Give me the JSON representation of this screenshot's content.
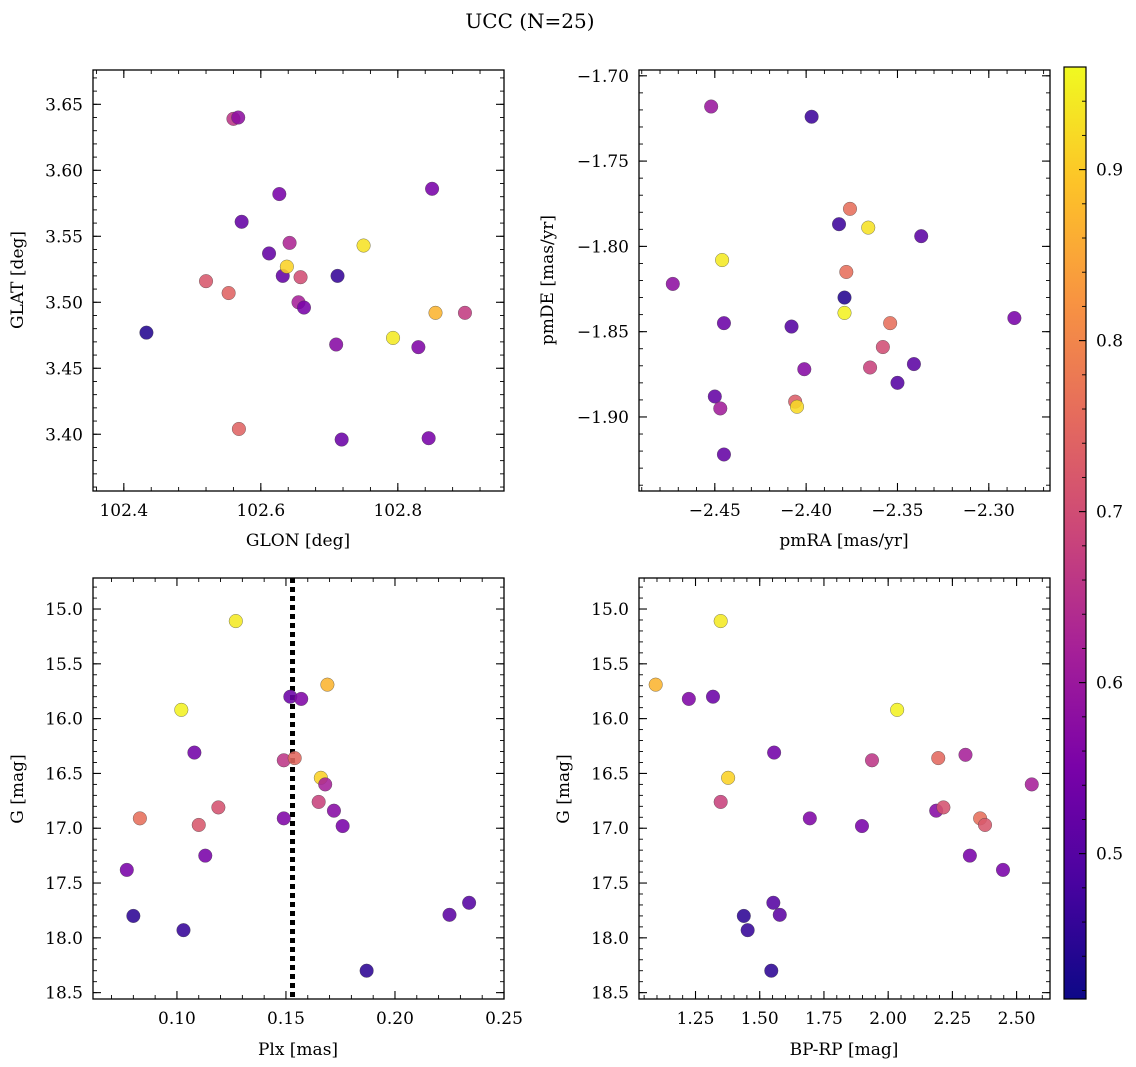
{
  "figure": {
    "title": "UCC (N=25)",
    "colorbar": {
      "range": [
        0.415,
        0.96
      ],
      "ticks": [
        0.5,
        0.6,
        0.7,
        0.8,
        0.9
      ],
      "tick_labels": [
        "0.5",
        "0.6",
        "0.7",
        "0.8",
        "0.9"
      ],
      "colormap": "plasma"
    }
  },
  "chart_data": [
    {
      "type": "scatter",
      "xlabel": "GLON [deg]",
      "ylabel": "GLAT [deg]",
      "xlim": [
        102.355,
        102.955
      ],
      "ylim": [
        3.357,
        3.676
      ],
      "xticks": [
        102.4,
        102.6,
        102.8
      ],
      "xtick_labels": [
        "102.4",
        "102.6",
        "102.8"
      ],
      "yticks": [
        3.4,
        3.45,
        3.5,
        3.55,
        3.6,
        3.65
      ],
      "ytick_labels": [
        "3.40",
        "3.45",
        "3.50",
        "3.55",
        "3.60",
        "3.65"
      ],
      "invert_y": false,
      "points": [
        {
          "x": 102.433,
          "y": 3.477,
          "c": 0.44
        },
        {
          "x": 102.52,
          "y": 3.516,
          "c": 0.72
        },
        {
          "x": 102.553,
          "y": 3.507,
          "c": 0.74
        },
        {
          "x": 102.56,
          "y": 3.639,
          "c": 0.66
        },
        {
          "x": 102.567,
          "y": 3.64,
          "c": 0.58
        },
        {
          "x": 102.568,
          "y": 3.404,
          "c": 0.74
        },
        {
          "x": 102.572,
          "y": 3.561,
          "c": 0.52
        },
        {
          "x": 102.612,
          "y": 3.537,
          "c": 0.52
        },
        {
          "x": 102.627,
          "y": 3.582,
          "c": 0.55
        },
        {
          "x": 102.632,
          "y": 3.52,
          "c": 0.52
        },
        {
          "x": 102.638,
          "y": 3.527,
          "c": 0.91
        },
        {
          "x": 102.642,
          "y": 3.545,
          "c": 0.63
        },
        {
          "x": 102.655,
          "y": 3.5,
          "c": 0.62
        },
        {
          "x": 102.658,
          "y": 3.519,
          "c": 0.7
        },
        {
          "x": 102.663,
          "y": 3.496,
          "c": 0.55
        },
        {
          "x": 102.712,
          "y": 3.52,
          "c": 0.46
        },
        {
          "x": 102.71,
          "y": 3.468,
          "c": 0.57
        },
        {
          "x": 102.718,
          "y": 3.396,
          "c": 0.53
        },
        {
          "x": 102.75,
          "y": 3.543,
          "c": 0.93
        },
        {
          "x": 102.793,
          "y": 3.473,
          "c": 0.94
        },
        {
          "x": 102.83,
          "y": 3.466,
          "c": 0.56
        },
        {
          "x": 102.845,
          "y": 3.397,
          "c": 0.55
        },
        {
          "x": 102.85,
          "y": 3.586,
          "c": 0.55
        },
        {
          "x": 102.855,
          "y": 3.492,
          "c": 0.87
        },
        {
          "x": 102.898,
          "y": 3.492,
          "c": 0.67
        }
      ]
    },
    {
      "type": "scatter",
      "xlabel": "pmRA [mas/yr]",
      "ylabel": "pmDE [mas/yr]",
      "xlim": [
        -2.4915,
        -2.2665
      ],
      "ylim": [
        -1.9434,
        -1.6966
      ],
      "xticks": [
        -2.45,
        -2.4,
        -2.35,
        -2.3
      ],
      "xtick_labels": [
        "−2.45",
        "−2.40",
        "−2.35",
        "−2.30"
      ],
      "yticks": [
        -1.9,
        -1.85,
        -1.8,
        -1.75,
        -1.7
      ],
      "ytick_labels": [
        "−1.90",
        "−1.85",
        "−1.80",
        "−1.75",
        "−1.70"
      ],
      "invert_y": false,
      "points": [
        {
          "x": -2.473,
          "y": -1.822,
          "c": 0.58
        },
        {
          "x": -2.452,
          "y": -1.718,
          "c": 0.6
        },
        {
          "x": -2.45,
          "y": -1.888,
          "c": 0.52
        },
        {
          "x": -2.447,
          "y": -1.895,
          "c": 0.61
        },
        {
          "x": -2.446,
          "y": -1.808,
          "c": 0.94
        },
        {
          "x": -2.445,
          "y": -1.845,
          "c": 0.53
        },
        {
          "x": -2.445,
          "y": -1.922,
          "c": 0.52
        },
        {
          "x": -2.408,
          "y": -1.847,
          "c": 0.5
        },
        {
          "x": -2.406,
          "y": -1.891,
          "c": 0.73
        },
        {
          "x": -2.405,
          "y": -1.894,
          "c": 0.92
        },
        {
          "x": -2.401,
          "y": -1.872,
          "c": 0.57
        },
        {
          "x": -2.397,
          "y": -1.724,
          "c": 0.47
        },
        {
          "x": -2.382,
          "y": -1.787,
          "c": 0.47
        },
        {
          "x": -2.379,
          "y": -1.83,
          "c": 0.44
        },
        {
          "x": -2.379,
          "y": -1.839,
          "c": 0.95
        },
        {
          "x": -2.378,
          "y": -1.815,
          "c": 0.76
        },
        {
          "x": -2.376,
          "y": -1.778,
          "c": 0.76
        },
        {
          "x": -2.366,
          "y": -1.789,
          "c": 0.93
        },
        {
          "x": -2.365,
          "y": -1.871,
          "c": 0.68
        },
        {
          "x": -2.358,
          "y": -1.859,
          "c": 0.7
        },
        {
          "x": -2.354,
          "y": -1.845,
          "c": 0.76
        },
        {
          "x": -2.35,
          "y": -1.88,
          "c": 0.5
        },
        {
          "x": -2.341,
          "y": -1.869,
          "c": 0.51
        },
        {
          "x": -2.337,
          "y": -1.794,
          "c": 0.51
        },
        {
          "x": -2.286,
          "y": -1.842,
          "c": 0.55
        }
      ]
    },
    {
      "type": "scatter",
      "xlabel": "Plx [mas]",
      "ylabel": "G [mag]",
      "xlim": [
        0.0615,
        0.25
      ],
      "ylim": [
        18.558,
        14.717
      ],
      "xticks": [
        0.1,
        0.15,
        0.2,
        0.25
      ],
      "xtick_labels": [
        "0.10",
        "0.15",
        "0.20",
        "0.25"
      ],
      "yticks": [
        15.0,
        15.5,
        16.0,
        16.5,
        17.0,
        17.5,
        18.0,
        18.5
      ],
      "ytick_labels": [
        "15.0",
        "15.5",
        "16.0",
        "16.5",
        "17.0",
        "17.5",
        "18.0",
        "18.5"
      ],
      "invert_y": true,
      "vline": 0.153,
      "points": [
        {
          "x": 0.077,
          "y": 17.38,
          "c": 0.55
        },
        {
          "x": 0.08,
          "y": 17.8,
          "c": 0.45
        },
        {
          "x": 0.083,
          "y": 16.91,
          "c": 0.76
        },
        {
          "x": 0.102,
          "y": 15.92,
          "c": 0.95
        },
        {
          "x": 0.103,
          "y": 17.93,
          "c": 0.46
        },
        {
          "x": 0.108,
          "y": 16.31,
          "c": 0.54
        },
        {
          "x": 0.11,
          "y": 16.97,
          "c": 0.72
        },
        {
          "x": 0.113,
          "y": 17.25,
          "c": 0.55
        },
        {
          "x": 0.119,
          "y": 16.81,
          "c": 0.71
        },
        {
          "x": 0.127,
          "y": 15.11,
          "c": 0.94
        },
        {
          "x": 0.149,
          "y": 16.38,
          "c": 0.66
        },
        {
          "x": 0.149,
          "y": 16.91,
          "c": 0.56
        },
        {
          "x": 0.152,
          "y": 15.8,
          "c": 0.53
        },
        {
          "x": 0.154,
          "y": 16.36,
          "c": 0.75
        },
        {
          "x": 0.157,
          "y": 15.82,
          "c": 0.56
        },
        {
          "x": 0.165,
          "y": 16.76,
          "c": 0.68
        },
        {
          "x": 0.166,
          "y": 16.54,
          "c": 0.91
        },
        {
          "x": 0.168,
          "y": 16.6,
          "c": 0.62
        },
        {
          "x": 0.169,
          "y": 15.69,
          "c": 0.87
        },
        {
          "x": 0.172,
          "y": 16.84,
          "c": 0.57
        },
        {
          "x": 0.176,
          "y": 16.98,
          "c": 0.55
        },
        {
          "x": 0.187,
          "y": 18.3,
          "c": 0.45
        },
        {
          "x": 0.225,
          "y": 17.79,
          "c": 0.51
        },
        {
          "x": 0.234,
          "y": 17.68,
          "c": 0.5
        }
      ]
    },
    {
      "type": "scatter",
      "xlabel": "BP-RP [mag]",
      "ylabel": "G [mag]",
      "xlim": [
        1.03,
        2.63
      ],
      "ylim": [
        18.558,
        14.717
      ],
      "xticks": [
        1.25,
        1.5,
        1.75,
        2.0,
        2.25,
        2.5
      ],
      "xtick_labels": [
        "1.25",
        "1.50",
        "1.75",
        "2.00",
        "2.25",
        "2.50"
      ],
      "yticks": [
        15.0,
        15.5,
        16.0,
        16.5,
        17.0,
        17.5,
        18.0,
        18.5
      ],
      "ytick_labels": [
        "15.0",
        "15.5",
        "16.0",
        "16.5",
        "17.0",
        "17.5",
        "18.0",
        "18.5"
      ],
      "invert_y": true,
      "points": [
        {
          "x": 1.095,
          "y": 15.69,
          "c": 0.87
        },
        {
          "x": 1.224,
          "y": 15.82,
          "c": 0.56
        },
        {
          "x": 1.318,
          "y": 15.8,
          "c": 0.53
        },
        {
          "x": 1.348,
          "y": 15.11,
          "c": 0.94
        },
        {
          "x": 1.348,
          "y": 16.76,
          "c": 0.68
        },
        {
          "x": 1.377,
          "y": 16.54,
          "c": 0.91
        },
        {
          "x": 1.438,
          "y": 17.8,
          "c": 0.45
        },
        {
          "x": 1.453,
          "y": 17.93,
          "c": 0.46
        },
        {
          "x": 1.545,
          "y": 18.3,
          "c": 0.45
        },
        {
          "x": 1.553,
          "y": 17.68,
          "c": 0.5
        },
        {
          "x": 1.556,
          "y": 16.31,
          "c": 0.54
        },
        {
          "x": 1.578,
          "y": 17.79,
          "c": 0.51
        },
        {
          "x": 1.695,
          "y": 16.91,
          "c": 0.56
        },
        {
          "x": 1.898,
          "y": 16.98,
          "c": 0.55
        },
        {
          "x": 1.937,
          "y": 16.38,
          "c": 0.66
        },
        {
          "x": 2.035,
          "y": 15.92,
          "c": 0.95
        },
        {
          "x": 2.187,
          "y": 16.84,
          "c": 0.57
        },
        {
          "x": 2.195,
          "y": 16.36,
          "c": 0.75
        },
        {
          "x": 2.215,
          "y": 16.81,
          "c": 0.71
        },
        {
          "x": 2.301,
          "y": 16.33,
          "c": 0.62
        },
        {
          "x": 2.318,
          "y": 17.25,
          "c": 0.55
        },
        {
          "x": 2.358,
          "y": 16.91,
          "c": 0.76
        },
        {
          "x": 2.377,
          "y": 16.97,
          "c": 0.72
        },
        {
          "x": 2.447,
          "y": 17.38,
          "c": 0.55
        },
        {
          "x": 2.559,
          "y": 16.6,
          "c": 0.62
        }
      ]
    }
  ]
}
